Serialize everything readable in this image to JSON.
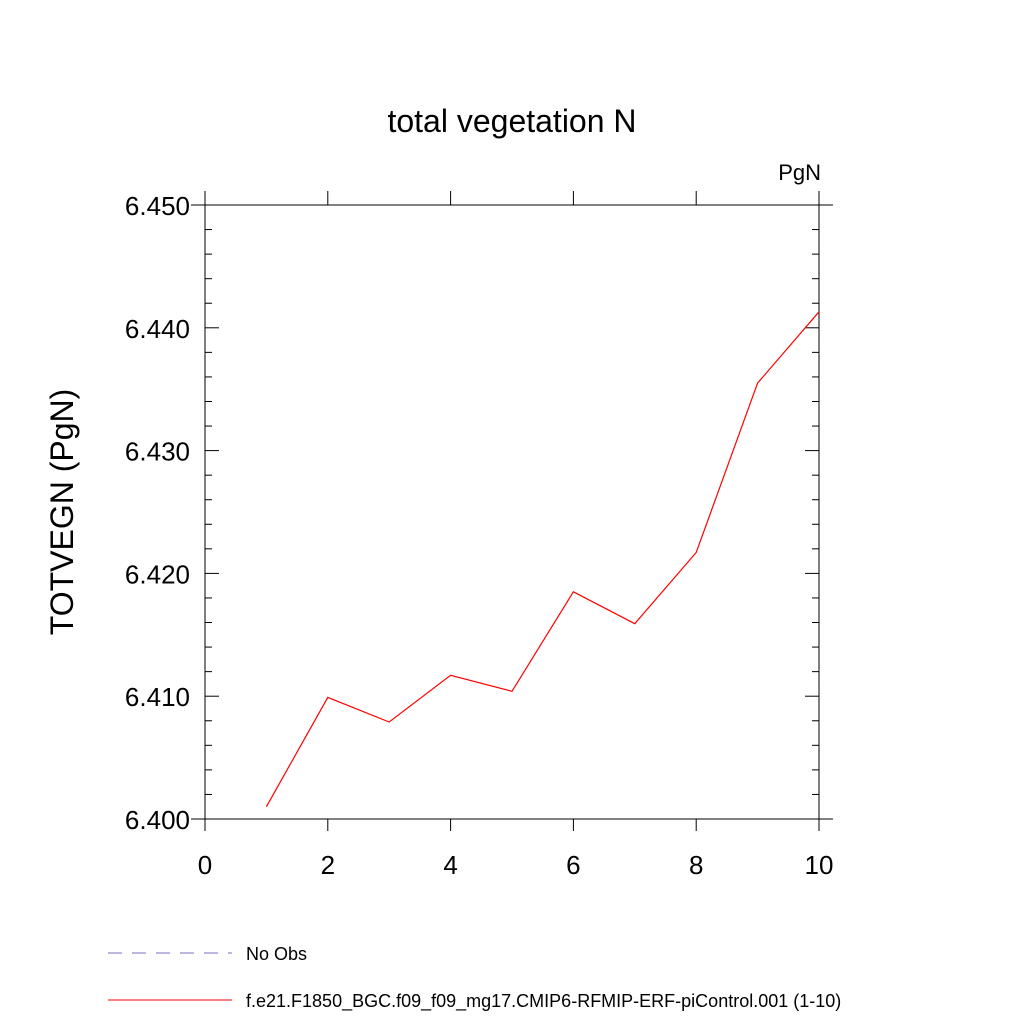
{
  "chart_data": {
    "type": "line",
    "title": "total vegetation N",
    "units_label": "PgN",
    "ylabel": "TOTVEGN  (PgN)",
    "xlabel": "",
    "xlim": [
      0,
      10
    ],
    "ylim": [
      6.4,
      6.45
    ],
    "x_ticks": [
      0,
      2,
      4,
      6,
      8,
      10
    ],
    "x_tick_labels": [
      "0",
      "2",
      "4",
      "6",
      "8",
      "10"
    ],
    "y_ticks": [
      6.4,
      6.41,
      6.42,
      6.43,
      6.44,
      6.45
    ],
    "y_tick_labels": [
      "6.400",
      "6.410",
      "6.420",
      "6.430",
      "6.440",
      "6.450"
    ],
    "grid": false,
    "series": [
      {
        "name": "f.e21.F1850_BGC.f09_f09_mg17.CMIP6-RFMIP-ERF-piControl.001 (1-10)",
        "color": "#ff0000",
        "x": [
          1,
          2,
          3,
          4,
          5,
          6,
          7,
          8,
          9,
          10
        ],
        "y": [
          6.401,
          6.4099,
          6.4079,
          6.4117,
          6.4104,
          6.4185,
          6.4159,
          6.4217,
          6.4355,
          6.4413
        ]
      }
    ],
    "legend": [
      {
        "label": "No Obs",
        "color": "#7b6fc4",
        "style": "dashed"
      },
      {
        "label": "f.e21.F1850_BGC.f09_f09_mg17.CMIP6-RFMIP-ERF-piControl.001 (1-10)",
        "color": "#ff0000",
        "style": "solid"
      }
    ]
  }
}
